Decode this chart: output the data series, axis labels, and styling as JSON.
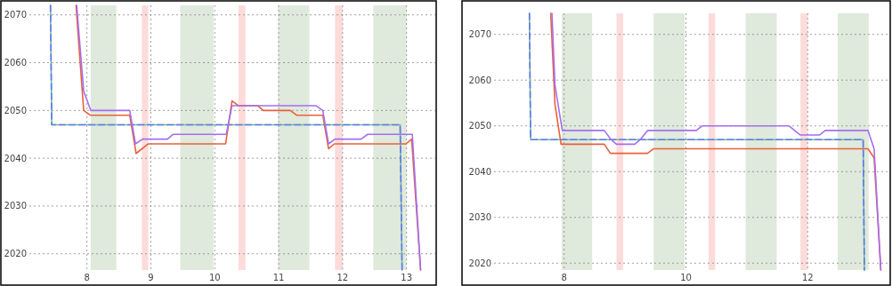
{
  "chart_data": [
    {
      "type": "line",
      "xlim": [
        7.1,
        13.45
      ],
      "ylim": [
        2016.6,
        2072
      ],
      "xticks": [
        8,
        9,
        10,
        11,
        12,
        13
      ],
      "yticks": [
        2020,
        2030,
        2040,
        2050,
        2060,
        2070
      ],
      "grid": true,
      "bands": [
        {
          "axis": "x",
          "from": 8.06,
          "to": 8.46,
          "color": "#dfe9dc"
        },
        {
          "axis": "x",
          "from": 9.46,
          "to": 9.98,
          "color": "#dfe9dc"
        },
        {
          "axis": "x",
          "from": 10.99,
          "to": 11.48,
          "color": "#dfe9dc"
        },
        {
          "axis": "x",
          "from": 12.48,
          "to": 13.0,
          "color": "#dfe9dc"
        },
        {
          "axis": "x",
          "from": 8.86,
          "to": 8.96,
          "color": "#fcdcda"
        },
        {
          "axis": "x",
          "from": 10.37,
          "to": 10.48,
          "color": "#fcdcda"
        },
        {
          "axis": "x",
          "from": 11.88,
          "to": 12.0,
          "color": "#fcdcda"
        }
      ],
      "series": [
        {
          "color": "#63c98f",
          "line_style": "solid",
          "x": [
            7.43,
            7.45,
            12.9,
            12.93
          ],
          "values": [
            2072,
            2047,
            2047,
            2016.6
          ]
        },
        {
          "color": "#6b73f0",
          "line_style": "dashed",
          "x": [
            7.43,
            7.45,
            12.9,
            12.93
          ],
          "values": [
            2072,
            2047,
            2047,
            2016.6
          ]
        },
        {
          "color": "#e8613c",
          "line_style": "solid",
          "x": [
            7.83,
            7.88,
            7.95,
            8.05,
            8.67,
            8.77,
            8.96,
            10.17,
            10.27,
            10.37,
            10.67,
            10.76,
            11.18,
            11.28,
            11.69,
            11.78,
            11.87,
            12.99,
            13.08,
            13.22
          ],
          "values": [
            2072,
            2062.6,
            2050,
            2049,
            2049,
            2041,
            2043,
            2043,
            2052,
            2051,
            2051,
            2050,
            2050,
            2049,
            2049,
            2042,
            2043,
            2043,
            2044,
            2016.6
          ]
        },
        {
          "color": "#a46ff0",
          "line_style": "solid",
          "x": [
            7.84,
            7.95,
            8.06,
            8.67,
            8.76,
            8.87,
            9.26,
            9.35,
            10.18,
            10.27,
            11.58,
            11.69,
            11.78,
            11.88,
            12.29,
            12.39,
            13.09,
            13.22
          ],
          "values": [
            2072,
            2054,
            2050,
            2050,
            2043,
            2044,
            2044,
            2045,
            2045,
            2051,
            2051,
            2050,
            2043,
            2044,
            2044,
            2045,
            2045,
            2016.6
          ]
        }
      ]
    },
    {
      "type": "line",
      "xlim": [
        6.85,
        13.34
      ],
      "ylim": [
        2018.5,
        2074.6
      ],
      "xticks": [
        8,
        10,
        12
      ],
      "yticks": [
        2020,
        2030,
        2040,
        2050,
        2060,
        2070
      ],
      "grid": true,
      "bands": [
        {
          "axis": "x",
          "from": 7.96,
          "to": 8.46,
          "color": "#dfe9dc"
        },
        {
          "axis": "x",
          "from": 9.47,
          "to": 9.98,
          "color": "#dfe9dc"
        },
        {
          "axis": "x",
          "from": 10.98,
          "to": 11.49,
          "color": "#dfe9dc"
        },
        {
          "axis": "x",
          "from": 12.49,
          "to": 13.0,
          "color": "#dfe9dc"
        },
        {
          "axis": "x",
          "from": 8.86,
          "to": 8.97,
          "color": "#fcdcda"
        },
        {
          "axis": "x",
          "from": 10.37,
          "to": 10.48,
          "color": "#fcdcda"
        },
        {
          "axis": "x",
          "from": 11.88,
          "to": 12.0,
          "color": "#fcdcda"
        }
      ],
      "series": [
        {
          "color": "#63c98f",
          "line_style": "solid",
          "x": [
            7.43,
            7.45,
            12.91,
            12.93
          ],
          "values": [
            2074.6,
            2047,
            2047,
            2018.5
          ]
        },
        {
          "color": "#6b73f0",
          "line_style": "dashed",
          "x": [
            7.43,
            7.45,
            12.91,
            12.93
          ],
          "values": [
            2074.6,
            2047,
            2047,
            2018.5
          ]
        },
        {
          "color": "#e8613c",
          "line_style": "solid",
          "x": [
            7.78,
            7.85,
            7.95,
            8.66,
            8.76,
            9.37,
            9.47,
            12.99,
            13.09,
            13.2
          ],
          "values": [
            2074.6,
            2054.7,
            2046,
            2046,
            2044,
            2044,
            2045,
            2045,
            2043,
            2018.5
          ]
        },
        {
          "color": "#a46ff0",
          "line_style": "solid",
          "x": [
            7.8,
            7.85,
            7.97,
            8.66,
            8.77,
            8.86,
            9.16,
            9.25,
            9.37,
            10.17,
            10.27,
            11.69,
            11.88,
            12.19,
            12.29,
            12.99,
            13.09,
            13.2
          ],
          "values": [
            2074.6,
            2058.9,
            2049,
            2049,
            2047,
            2046,
            2046,
            2047,
            2049,
            2049,
            2050,
            2050,
            2048,
            2048,
            2049,
            2049,
            2045,
            2018.5
          ]
        }
      ]
    }
  ]
}
